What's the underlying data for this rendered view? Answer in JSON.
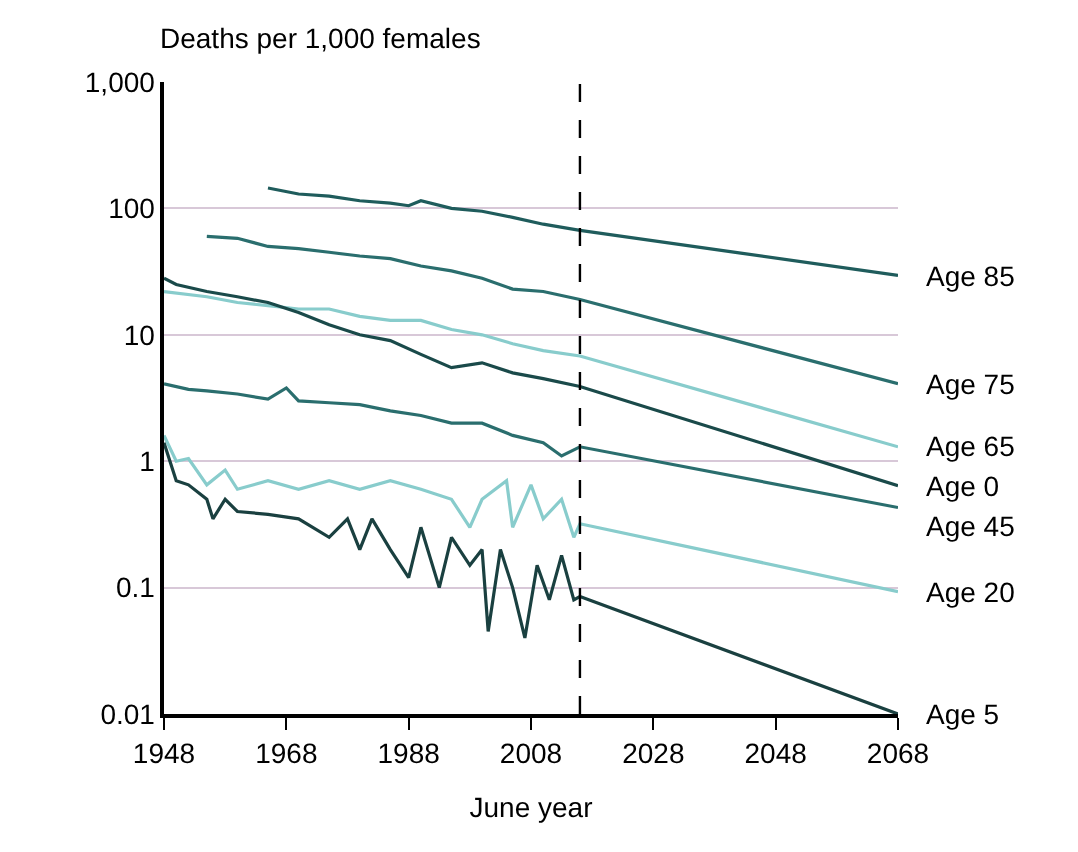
{
  "chart_data": {
    "type": "line",
    "ylabel": "Deaths per 1,000 females",
    "xlabel": "June year",
    "log": "y",
    "grid": "y",
    "legend": false,
    "xlim": [
      1948,
      2068
    ],
    "xticks": [
      1948,
      1968,
      1988,
      2008,
      2028,
      2048,
      2068
    ],
    "ylim": [
      0.01,
      1000
    ],
    "yticks": [
      {
        "value": 0.01,
        "label": "0.01"
      },
      {
        "value": 0.1,
        "label": "0.1"
      },
      {
        "value": 1,
        "label": "1"
      },
      {
        "value": 10,
        "label": "10"
      },
      {
        "value": 100,
        "label": "100"
      },
      {
        "value": 1000,
        "label": "1,000"
      }
    ],
    "ref_lines": [
      {
        "axis": "x",
        "value": 2016,
        "label": null,
        "color": "#000000",
        "line_style": "dashed"
      }
    ],
    "series": [
      {
        "name": "Age 85",
        "color": "#1f5c5c",
        "x": [
          1965,
          1970,
          1975,
          1980,
          1985,
          1988,
          1990,
          1995,
          2000,
          2005,
          2010,
          2016,
          2068
        ],
        "values": [
          145,
          130,
          125,
          115,
          110,
          105,
          115,
          100,
          95,
          85,
          75,
          67,
          29.5
        ]
      },
      {
        "name": "Age 75",
        "color": "#2a6e6e",
        "x": [
          1955,
          1960,
          1965,
          1970,
          1975,
          1980,
          1985,
          1990,
          1995,
          2000,
          2005,
          2010,
          2016,
          2068
        ],
        "values": [
          60,
          58,
          50,
          48,
          45,
          42,
          40,
          35,
          32,
          28,
          23,
          22,
          19,
          4.1
        ]
      },
      {
        "name": "Age 65",
        "color": "#88cccc",
        "x": [
          1948,
          1955,
          1960,
          1965,
          1970,
          1975,
          1980,
          1985,
          1990,
          1995,
          2000,
          2005,
          2010,
          2016,
          2068
        ],
        "values": [
          22,
          20,
          18,
          17,
          16,
          16,
          14,
          13,
          13,
          11,
          10,
          8.5,
          7.5,
          6.8,
          1.3
        ]
      },
      {
        "name": "Age 0",
        "color": "#1a4a4a",
        "x": [
          1948,
          1950,
          1955,
          1960,
          1965,
          1970,
          1975,
          1980,
          1985,
          1990,
          1995,
          2000,
          2005,
          2010,
          2016,
          2068
        ],
        "values": [
          28,
          25,
          22,
          20,
          18,
          15,
          12,
          10,
          9,
          7,
          5.5,
          6,
          5,
          4.5,
          3.9,
          0.64
        ]
      },
      {
        "name": "Age 45",
        "color": "#2a6e6e",
        "x": [
          1948,
          1952,
          1955,
          1960,
          1965,
          1968,
          1970,
          1975,
          1980,
          1985,
          1990,
          1995,
          2000,
          2005,
          2010,
          2013,
          2016,
          2068
        ],
        "values": [
          4.1,
          3.7,
          3.6,
          3.4,
          3.1,
          3.8,
          3.0,
          2.9,
          2.8,
          2.5,
          2.3,
          2.0,
          2.0,
          1.6,
          1.4,
          1.1,
          1.3,
          0.43
        ]
      },
      {
        "name": "Age 20",
        "color": "#88cccc",
        "x": [
          1948,
          1950,
          1952,
          1955,
          1958,
          1960,
          1965,
          1970,
          1975,
          1980,
          1985,
          1990,
          1995,
          1998,
          2000,
          2004,
          2005,
          2008,
          2010,
          2013,
          2015,
          2016,
          2068
        ],
        "values": [
          1.6,
          1.0,
          1.05,
          0.65,
          0.85,
          0.6,
          0.7,
          0.6,
          0.7,
          0.6,
          0.7,
          0.6,
          0.5,
          0.3,
          0.5,
          0.7,
          0.3,
          0.65,
          0.35,
          0.5,
          0.25,
          0.32,
          0.093
        ]
      },
      {
        "name": "Age 5",
        "color": "#1a4040",
        "x": [
          1948,
          1950,
          1952,
          1955,
          1956,
          1958,
          1960,
          1965,
          1970,
          1975,
          1978,
          1980,
          1982,
          1985,
          1988,
          1990,
          1993,
          1995,
          1998,
          2000,
          2001,
          2003,
          2005,
          2007,
          2009,
          2011,
          2013,
          2015,
          2016,
          2068
        ],
        "values": [
          1.4,
          0.7,
          0.65,
          0.5,
          0.35,
          0.5,
          0.4,
          0.38,
          0.35,
          0.25,
          0.35,
          0.2,
          0.35,
          0.2,
          0.12,
          0.3,
          0.1,
          0.25,
          0.15,
          0.2,
          0.045,
          0.2,
          0.1,
          0.04,
          0.15,
          0.08,
          0.18,
          0.08,
          0.085,
          0.01
        ]
      }
    ]
  }
}
